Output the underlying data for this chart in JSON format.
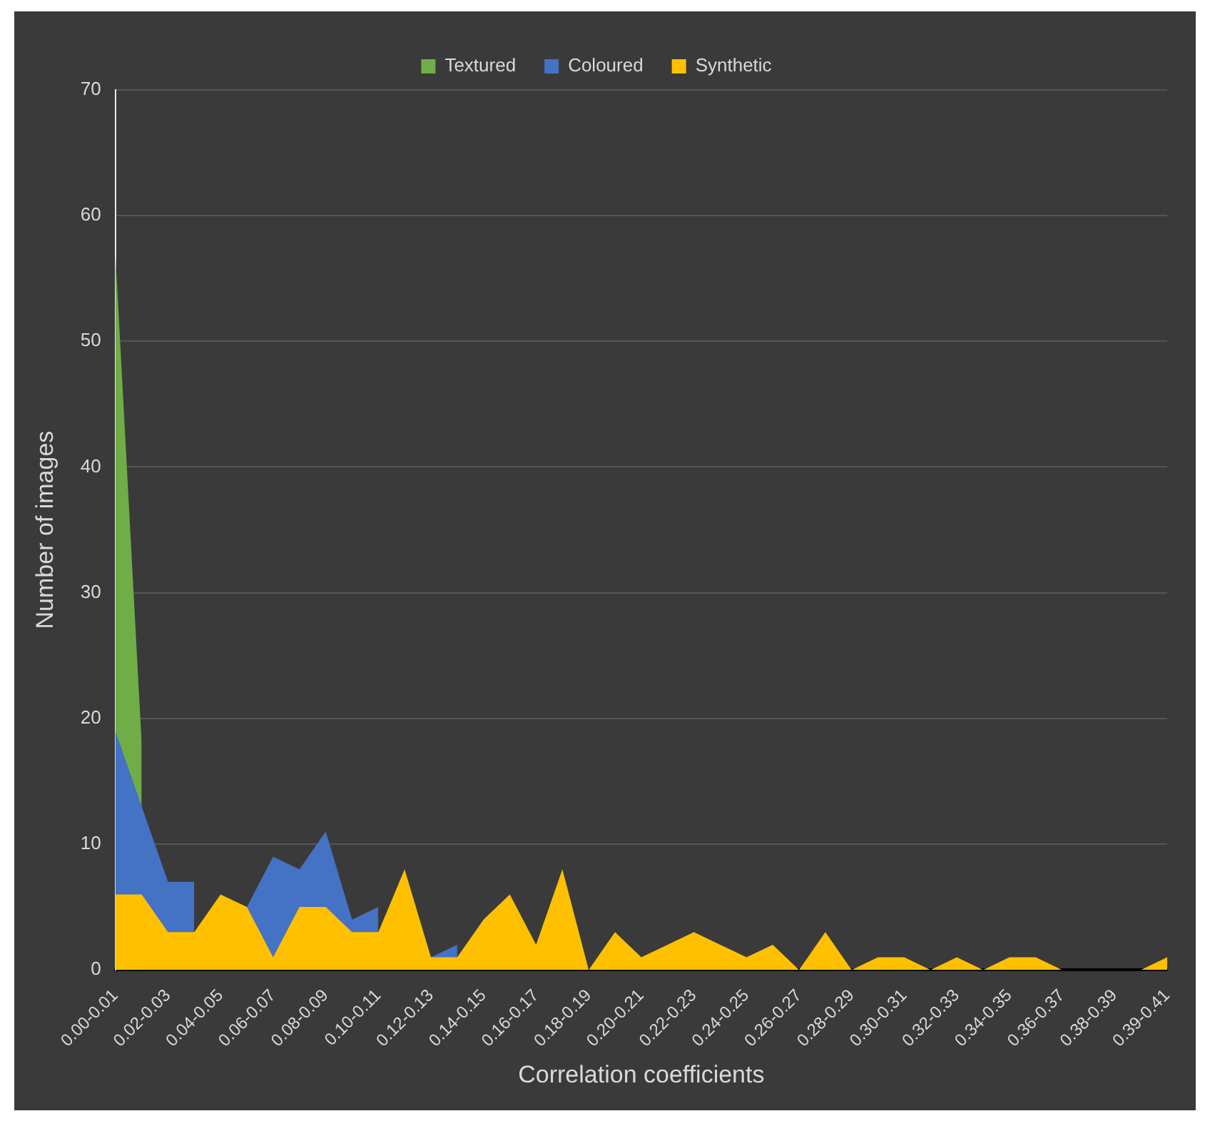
{
  "chart_data": {
    "type": "area",
    "xlabel": "Correlation coefficients",
    "ylabel": "Number of images",
    "categories": [
      "0.00-0.01",
      null,
      "0.02-0.03",
      null,
      "0.04-0.05",
      null,
      "0.06-0.07",
      null,
      "0.08-0.09",
      null,
      "0.10-0.11",
      null,
      "0.12-0.13",
      null,
      "0.14-0.15",
      null,
      "0.16-0.17",
      null,
      "0.18-0.19",
      null,
      "0.20-0.21",
      null,
      "0.22-0.23",
      null,
      "0.24-0.25",
      null,
      "0.26-0.27",
      null,
      "0.28-0.29",
      null,
      "0.30-0.31",
      null,
      "0.32-0.33",
      null,
      "0.34-0.35",
      null,
      "0.36-0.37",
      null,
      "0.38-0.39",
      null,
      "0.39-0.41"
    ],
    "series": [
      {
        "name": "Textured",
        "color": "#70ad47",
        "values": [
          57,
          18,
          null,
          null,
          null,
          null,
          null,
          null,
          null,
          null,
          null,
          null,
          null,
          null,
          null,
          null,
          null,
          null,
          null,
          null,
          null,
          null,
          null,
          null,
          null,
          null,
          null,
          null,
          null,
          null,
          null,
          null,
          null,
          null,
          null,
          null,
          null,
          null,
          null,
          null,
          null
        ]
      },
      {
        "name": "Coloured",
        "color": "#4472c4",
        "values": [
          19,
          13,
          7,
          7,
          null,
          5,
          9,
          8,
          11,
          4,
          5,
          null,
          1,
          2,
          null,
          null,
          null,
          null,
          null,
          null,
          null,
          null,
          null,
          null,
          null,
          null,
          null,
          null,
          null,
          null,
          null,
          null,
          null,
          null,
          null,
          null,
          null,
          null,
          null,
          null,
          null
        ]
      },
      {
        "name": "Synthetic",
        "color": "#ffc000",
        "values": [
          6,
          6,
          3,
          3,
          6,
          5,
          1,
          5,
          5,
          3,
          3,
          8,
          1,
          1,
          4,
          6,
          2,
          8,
          0,
          3,
          1,
          2,
          3,
          2,
          1,
          2,
          0,
          3,
          0,
          1,
          1,
          0,
          1,
          0,
          1,
          1,
          0,
          0,
          0,
          0,
          1
        ]
      }
    ],
    "ylim": [
      0,
      70
    ],
    "yticks": [
      0,
      10,
      20,
      30,
      40,
      50,
      60,
      70
    ],
    "grid": "y",
    "legend": "top"
  }
}
